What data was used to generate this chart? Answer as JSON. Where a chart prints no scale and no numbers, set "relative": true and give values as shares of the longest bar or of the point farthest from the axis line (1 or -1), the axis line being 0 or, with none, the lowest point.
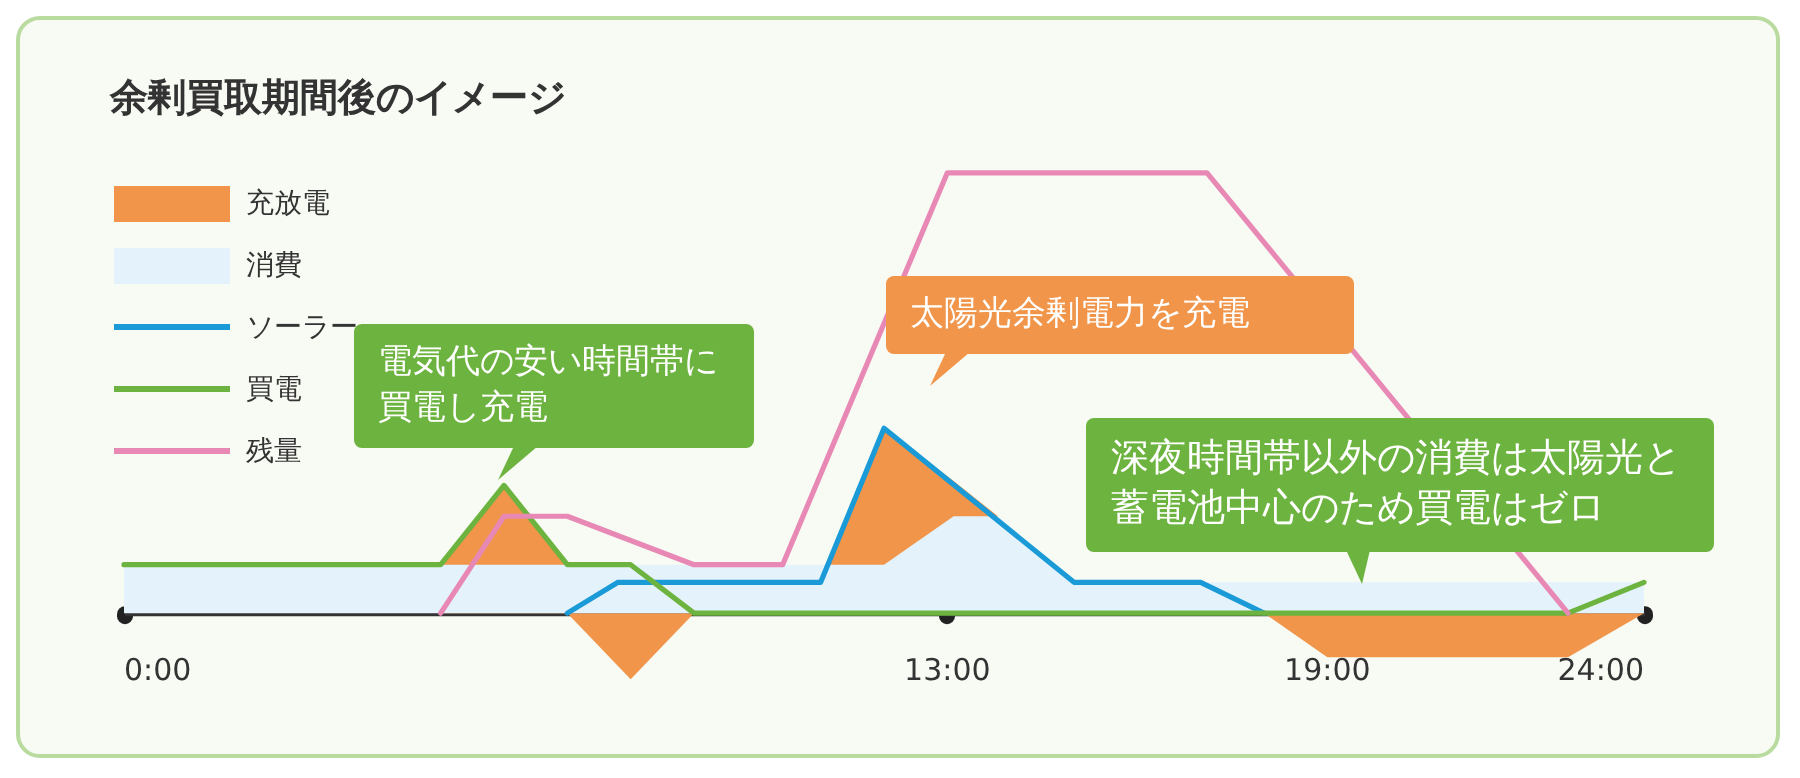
{
  "chart_data": {
    "type": "line",
    "title": "余剰買取期間後のイメージ",
    "relative": true,
    "xlim": [
      0,
      24
    ],
    "xticks": [
      {
        "value": 0,
        "label": "0:00"
      },
      {
        "value": 13,
        "label": "13:00"
      },
      {
        "value": 19,
        "label": "19:00"
      },
      {
        "value": 24,
        "label": "24:00"
      }
    ],
    "legend": "top left",
    "grid": false,
    "line_style": "solid",
    "marker": "none",
    "series": [
      {
        "name": "充放電",
        "type": "area",
        "color": "#f0954a",
        "x": [
          5,
          6,
          7,
          null,
          7,
          8,
          9,
          null,
          11.1,
          12,
          13.1,
          13.8,
          null,
          18,
          19,
          22.8,
          24
        ],
        "values": [
          0.11,
          0.29,
          0.11,
          null,
          0,
          -0.15,
          0,
          null,
          0.11,
          0.42,
          0.3,
          0.22,
          null,
          0,
          -0.1,
          -0.1,
          0
        ]
      },
      {
        "name": "消費",
        "type": "area",
        "color": "#e4f2fb",
        "x": [
          0,
          12,
          13.1,
          13.8,
          15,
          24
        ],
        "values": [
          0.11,
          0.11,
          0.22,
          0.22,
          0.07,
          0.07
        ]
      },
      {
        "name": "ソーラー",
        "color": "#1a9ad6",
        "x": [
          7,
          7.8,
          11,
          12,
          15,
          17,
          18
        ],
        "values": [
          0,
          0.07,
          0.07,
          0.42,
          0.07,
          0.07,
          0
        ]
      },
      {
        "name": "買電",
        "color": "#6db33f",
        "x": [
          0,
          5,
          6,
          7,
          8,
          9,
          22.8,
          24
        ],
        "values": [
          0.11,
          0.11,
          0.29,
          0.11,
          0.11,
          0,
          0,
          0.07
        ]
      },
      {
        "name": "残量",
        "color": "#e889b5",
        "x": [
          5,
          6,
          7,
          9,
          10.4,
          13,
          17.1,
          22.8
        ],
        "values": [
          0,
          0.22,
          0.22,
          0.11,
          0.11,
          1,
          1,
          0
        ]
      }
    ],
    "annotations": [
      {
        "text": "電気代の安い時間帯に買電し充電",
        "x": 6,
        "y": 0.29
      },
      {
        "text": "太陽光余剰電力を充電",
        "x": 12,
        "y": 0.42
      },
      {
        "text": "深夜時間帯以外の消費は太陽光と蓄電池中心のため買電はゼロ",
        "x": 20,
        "y": 0
      }
    ]
  }
}
